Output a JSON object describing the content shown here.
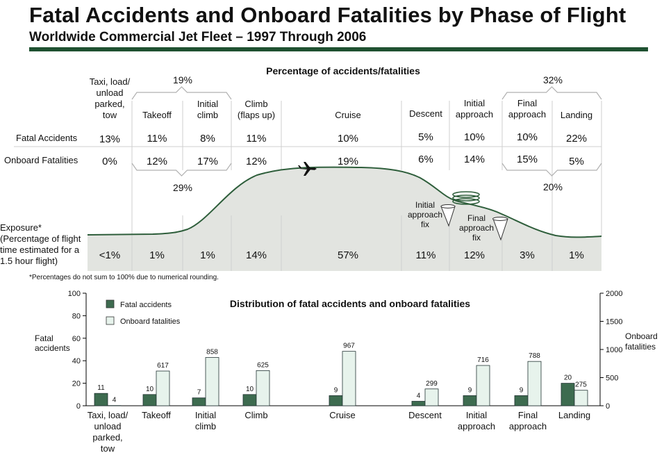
{
  "header": {
    "title": "Fatal Accidents and Onboard Fatalities by Phase of Flight",
    "subtitle": "Worldwide Commercial Jet Fleet – 1997 Through 2006"
  },
  "colors": {
    "rule": "#1f5131",
    "curve": "#2e5e3b",
    "fill": "#e2e4e0",
    "bar_dark": "#3d6b4f",
    "bar_light": "#e7f3ec"
  },
  "phase_table": {
    "heading": "Percentage of accidents/fatalities",
    "phases": [
      {
        "name": [
          "Taxi, load/",
          "unload",
          "parked,",
          "tow"
        ],
        "fatal_accidents": "13%",
        "onboard_fatalities": "0%",
        "exposure": "<1%"
      },
      {
        "name": [
          "Takeoff"
        ],
        "fatal_accidents": "11%",
        "onboard_fatalities": "12%",
        "exposure": "1%"
      },
      {
        "name": [
          "Initial",
          "climb"
        ],
        "fatal_accidents": "8%",
        "onboard_fatalities": "17%",
        "exposure": "1%"
      },
      {
        "name": [
          "Climb",
          "(flaps up)"
        ],
        "fatal_accidents": "11%",
        "onboard_fatalities": "12%",
        "exposure": "14%"
      },
      {
        "name": [
          "Cruise"
        ],
        "fatal_accidents": "10%",
        "onboard_fatalities": "19%",
        "exposure": "57%"
      },
      {
        "name": [
          "Descent"
        ],
        "fatal_accidents": "5%",
        "onboard_fatalities": "6%",
        "exposure": "11%"
      },
      {
        "name": [
          "Initial",
          "approach"
        ],
        "fatal_accidents": "10%",
        "onboard_fatalities": "14%",
        "exposure": "12%"
      },
      {
        "name": [
          "Final",
          "approach"
        ],
        "fatal_accidents": "10%",
        "onboard_fatalities": "15%",
        "exposure": "3%"
      },
      {
        "name": [
          "Landing"
        ],
        "fatal_accidents": "22%",
        "onboard_fatalities": "5%",
        "exposure": "1%"
      }
    ],
    "row_labels": {
      "fatal_accidents": "Fatal Accidents",
      "onboard_fatalities": "Onboard Fatalities"
    },
    "exposure_label": [
      "Exposure*",
      "(Percentage of flight",
      "time estimated for a",
      "1.5 hour flight)"
    ],
    "bracket_labels": {
      "takeoff_climb_accidents": "19%",
      "takeoff_climb_fatalities": "29%",
      "approach_landing_accidents": "32%",
      "approach_landing_fatalities": "20%"
    },
    "fix_labels": {
      "initial": [
        "Initial",
        "approach",
        "fix"
      ],
      "final": [
        "Final",
        "approach",
        "fix"
      ]
    },
    "footnote": "*Percentages do not sum to 100% due to numerical rounding."
  },
  "chart_data": {
    "type": "bar",
    "title": "Distribution of fatal accidents and onboard fatalities",
    "categories": [
      [
        "Taxi, load/",
        "unload",
        "parked,",
        "tow"
      ],
      [
        "Takeoff"
      ],
      [
        "Initial",
        "climb"
      ],
      [
        "Climb"
      ],
      [
        "Cruise"
      ],
      [
        "Descent"
      ],
      [
        "Initial",
        "approach"
      ],
      [
        "Final",
        "approach"
      ],
      [
        "Landing"
      ]
    ],
    "series": [
      {
        "name": "Fatal accidents",
        "axis": "left",
        "values": [
          11,
          10,
          7,
          10,
          9,
          4,
          9,
          9,
          20
        ]
      },
      {
        "name": "Onboard fatalities",
        "axis": "right",
        "values": [
          4,
          617,
          858,
          625,
          967,
          299,
          716,
          788,
          275
        ]
      }
    ],
    "ylabel_left": [
      "Fatal",
      "accidents"
    ],
    "ylabel_right": [
      "Onboard",
      "fatalities"
    ],
    "ylim_left": [
      0,
      100
    ],
    "ylim_right": [
      0,
      2000
    ],
    "yticks_left": [
      0,
      20,
      40,
      60,
      80,
      100
    ],
    "yticks_right": [
      0,
      500,
      1000,
      1500,
      2000
    ],
    "legend_position": "top-left",
    "grid": false
  }
}
